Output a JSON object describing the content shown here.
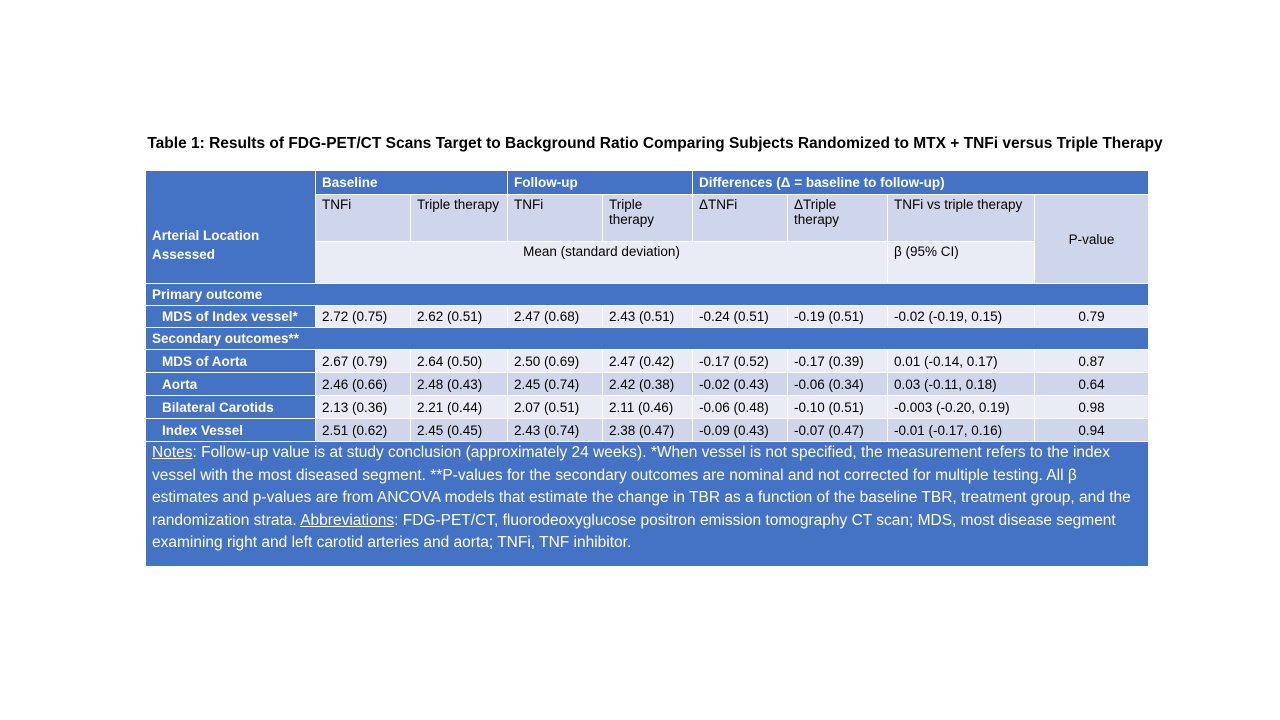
{
  "title": "Table 1: Results of FDG-PET/CT Scans Target to Background Ratio Comparing Subjects Randomized to MTX + TNFi versus Triple Therapy",
  "header": {
    "arterial_location": "Arterial Location Assessed",
    "baseline": "Baseline",
    "followup": "Follow-up",
    "differences": "Differences (Δ = baseline to follow-up)",
    "tnfi": "TNFi",
    "triple": "Triple therapy",
    "d_tnfi": "ΔTNFi",
    "d_triple": "ΔTriple therapy",
    "tnfi_vs_triple": "TNFi vs triple therapy",
    "pvalue": "P-value",
    "mean_sd": "Mean (standard deviation)",
    "beta_ci": "β (95% CI)"
  },
  "sections": {
    "primary": "Primary outcome",
    "secondary": "Secondary outcomes**"
  },
  "rows": [
    {
      "label": "MDS of Index vessel*",
      "values": [
        "2.72 (0.75)",
        "2.62 (0.51)",
        "2.47 (0.68)",
        "2.43 (0.51)",
        "-0.24 (0.51)",
        "-0.19 (0.51)",
        "-0.02 (-0.19, 0.15)",
        "0.79"
      ]
    },
    {
      "label": "MDS of Aorta",
      "values": [
        "2.67 (0.79)",
        "2.64 (0.50)",
        "2.50 (0.69)",
        "2.47 (0.42)",
        "-0.17 (0.52)",
        "-0.17 (0.39)",
        "0.01 (-0.14, 0.17)",
        "0.87"
      ]
    },
    {
      "label": "Aorta",
      "values": [
        "2.46 (0.66)",
        "2.48 (0.43)",
        "2.45 (0.74)",
        "2.42 (0.38)",
        "-0.02 (0.43)",
        "-0.06 (0.34)",
        "0.03 (-0.11, 0.18)",
        "0.64"
      ]
    },
    {
      "label": "Bilateral Carotids",
      "values": [
        "2.13 (0.36)",
        "2.21 (0.44)",
        "2.07 (0.51)",
        "2.11 (0.46)",
        "-0.06 (0.48)",
        "-0.10 (0.51)",
        "-0.003 (-0.20, 0.19)",
        "0.98"
      ]
    },
    {
      "label": "Index Vessel",
      "values": [
        "2.51 (0.62)",
        "2.45 (0.45)",
        "2.43 (0.74)",
        "2.38 (0.47)",
        "-0.09 (0.43)",
        "-0.07 (0.47)",
        "-0.01 (-0.17, 0.16)",
        "0.94"
      ]
    }
  ],
  "notes": {
    "notes_label": "Notes",
    "notes_text": ": Follow-up value is at study conclusion (approximately 24 weeks). *When vessel is not specified, the measurement refers to the index vessel with the most diseased segment. **P-values for the secondary outcomes are nominal and not corrected for multiple testing. All β estimates and p-values are from ANCOVA models that estimate the change in TBR as a function of the baseline TBR, treatment group, and the randomization strata. ",
    "abbrev_label": "Abbreviations",
    "abbrev_text": ": FDG-PET/CT, fluorodeoxyglucose positron emission tomography CT scan; MDS, most disease segment examining right and left carotid arteries and aorta; TNFi, TNF inhibitor."
  },
  "colors": {
    "header_blue": "#4472c4",
    "row_lavender": "#cfd5ea",
    "row_pale": "#e9ebf5"
  }
}
